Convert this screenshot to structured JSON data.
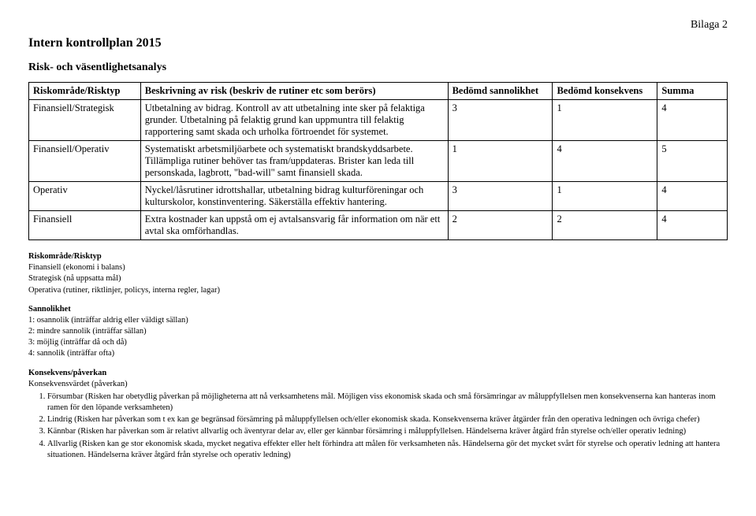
{
  "header": {
    "attachment": "Bilaga 2",
    "title": "Intern kontrollplan 2015",
    "subheading": "Risk- och väsentlighetsanalys"
  },
  "table": {
    "columns": [
      "Riskområde/Risktyp",
      "Beskrivning av risk (beskriv de rutiner etc som berörs)",
      "Bedömd sannolikhet",
      "Bedömd konsekvens",
      "Summa"
    ],
    "col_widths": [
      "16%",
      "44%",
      "15%",
      "15%",
      "10%"
    ],
    "rows": [
      {
        "area": "Finansiell/Strategisk",
        "desc": "Utbetalning av bidrag. Kontroll av att utbetalning inte sker på felaktiga grunder. Utbetalning på felaktig grund kan uppmuntra till felaktig rapportering samt skada och urholka förtroendet för systemet.",
        "prob": "3",
        "cons": "1",
        "sum": "4"
      },
      {
        "area": "Finansiell/Operativ",
        "desc": "Systematiskt arbetsmiljöarbete och systematiskt brandskyddsarbete. Tillämpliga rutiner behöver tas fram/uppdateras. Brister kan leda till personskada, lagbrott, \"bad-will\" samt finansiell skada.",
        "prob": "1",
        "cons": "4",
        "sum": "5"
      },
      {
        "area": "Operativ",
        "desc": "Nyckel/låsrutiner idrottshallar, utbetalning bidrag kulturföreningar och kulturskolor, konstinventering. Säkerställa effektiv hantering.",
        "prob": "3",
        "cons": "1",
        "sum": "4"
      },
      {
        "area": "Finansiell",
        "desc": "Extra kostnader kan uppstå om ej avtalsansvarig får information om när ett avtal ska omförhandlas.",
        "prob": "2",
        "cons": "2",
        "sum": "4"
      }
    ]
  },
  "defs": {
    "risktype": {
      "heading": "Riskområde/Risktyp",
      "lines": [
        "Finansiell (ekonomi i balans)",
        "Strategisk (nå uppsatta mål)",
        "Operativa (rutiner, riktlinjer, policys, interna regler, lagar)"
      ]
    },
    "prob": {
      "heading": "Sannolikhet",
      "lines": [
        "1: osannolik (inträffar aldrig eller väldigt sällan)",
        "2: mindre sannolik (inträffar sällan)",
        "3: möjlig (inträffar då och då)",
        "4: sannolik (inträffar ofta)"
      ]
    },
    "cons": {
      "heading": "Konsekvens/påverkan",
      "subheading": "Konsekvensvärdet (påverkan)",
      "items": [
        "Försumbar (Risken har obetydlig påverkan på möjligheterna att nå verksamhetens mål. Möjligen viss ekonomisk skada och små försämringar av måluppfyllelsen men konsekvenserna kan hanteras inom ramen för den löpande verksamheten)",
        "Lindrig (Risken har påverkan som t ex kan ge begränsad försämring på måluppfyllelsen och/eller ekonomisk skada. Konsekvenserna kräver åtgärder från den operativa ledningen och övriga chefer)",
        "Kännbar (Risken har påverkan som är relativt allvarlig och äventyrar delar av, eller ger kännbar försämring i måluppfyllelsen. Händelserna kräver åtgärd från styrelse och/eller operativ ledning)",
        "Allvarlig (Risken kan ge stor ekonomisk skada, mycket negativa effekter eller helt förhindra att målen för verksamheten nås. Händelserna gör det mycket svårt för styrelse och operativ ledning att hantera situationen. Händelserna kräver åtgärd från styrelse och operativ ledning)"
      ]
    }
  }
}
